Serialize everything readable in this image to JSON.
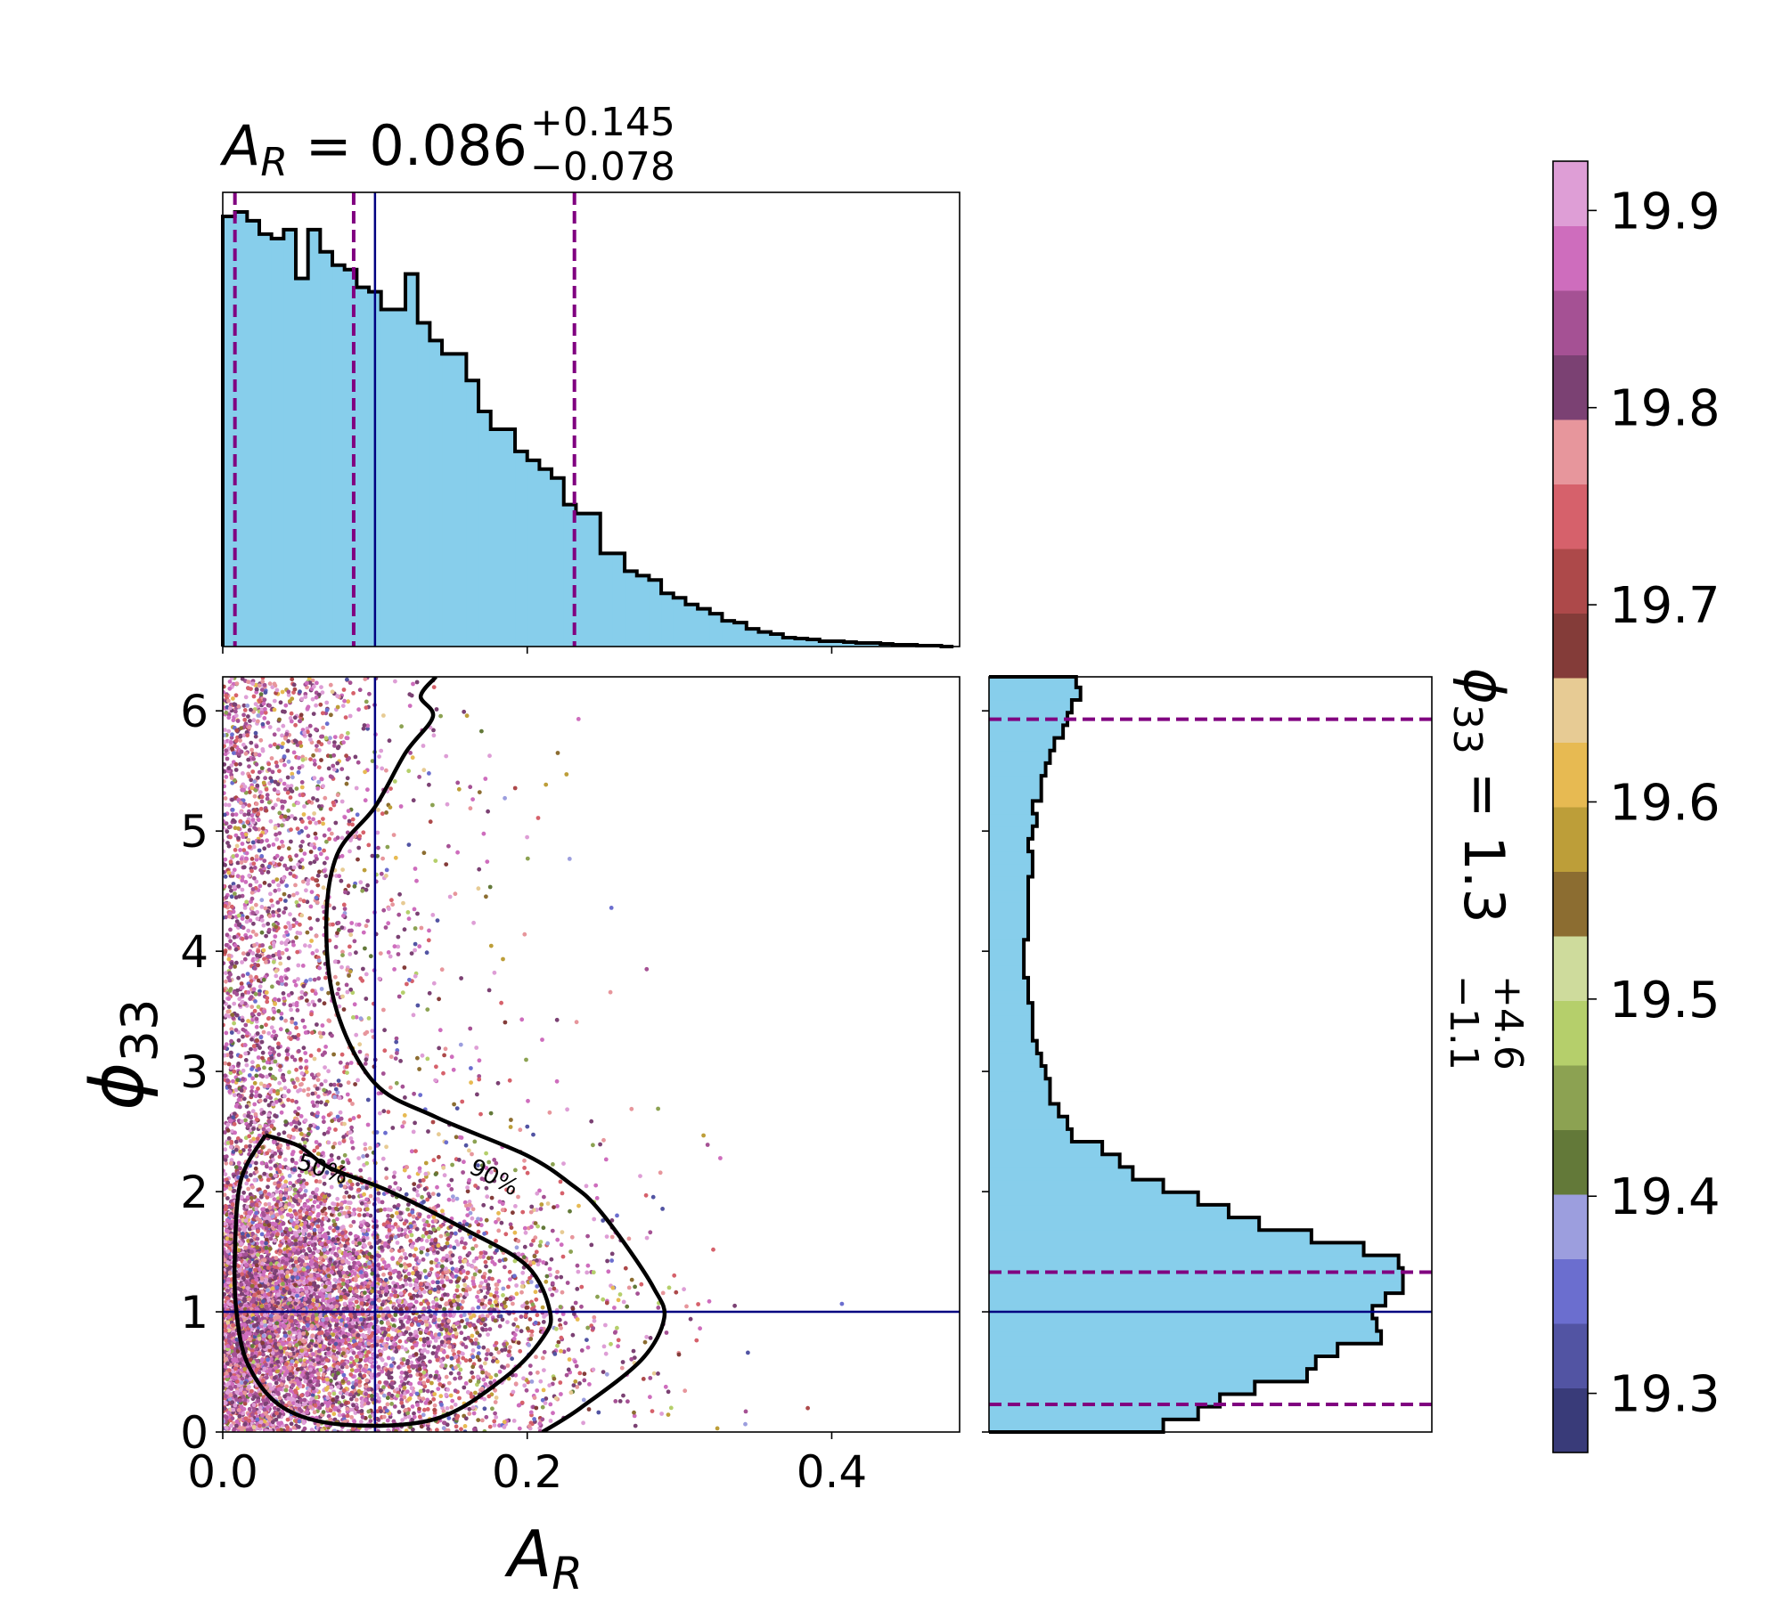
{
  "chart_data": [
    {
      "panel": "top-marginal-histogram",
      "type": "bar",
      "title": {
        "symbol": "A",
        "subscript": "R",
        "eq": " = 0.086",
        "sup": "+0.145",
        "sub": "−0.078"
      },
      "xlim": [
        0,
        0.484
      ],
      "x_ticks": [
        0.0,
        0.2,
        0.4
      ],
      "bins": {
        "start": 0.0,
        "width": 0.008,
        "heights": [
          0.97,
          0.98,
          0.96,
          0.93,
          0.92,
          0.94,
          0.83,
          0.94,
          0.89,
          0.86,
          0.85,
          0.81,
          0.8,
          0.76,
          0.76,
          0.84,
          0.73,
          0.69,
          0.66,
          0.66,
          0.6,
          0.53,
          0.49,
          0.49,
          0.44,
          0.42,
          0.4,
          0.38,
          0.32,
          0.3,
          0.3,
          0.21,
          0.21,
          0.17,
          0.16,
          0.15,
          0.12,
          0.11,
          0.095,
          0.085,
          0.074,
          0.058,
          0.054,
          0.04,
          0.033,
          0.028,
          0.02,
          0.018,
          0.016,
          0.012,
          0.012,
          0.01,
          0.008,
          0.008,
          0.006,
          0.004,
          0.004,
          0.002,
          0.002,
          0.0
        ]
      },
      "fill_color": "#87ceeb",
      "median_line": 0.1,
      "quantile_lines": [
        0.008,
        0.086,
        0.231
      ],
      "median_color": "#000080",
      "quantile_color": "#800080"
    },
    {
      "panel": "joint-scatter",
      "type": "scatter",
      "xlabel": {
        "symbol": "A",
        "subscript": "R"
      },
      "ylabel": {
        "symbol": "ϕ",
        "subscript": "33"
      },
      "xlim": [
        0,
        0.484
      ],
      "ylim": [
        0,
        6.283
      ],
      "x_ticks": [
        "0.0",
        "0.2",
        "0.4"
      ],
      "y_ticks": [
        "0",
        "1",
        "2",
        "3",
        "4",
        "5",
        "6"
      ],
      "truth": {
        "x": 0.1,
        "y": 1.0
      },
      "contours": [
        {
          "label": "50%",
          "points": [
            [
              0.028,
              2.47
            ],
            [
              0.012,
              2.1
            ],
            [
              0.008,
              1.5
            ],
            [
              0.009,
              1.0
            ],
            [
              0.017,
              0.55
            ],
            [
              0.04,
              0.2
            ],
            [
              0.08,
              0.06
            ],
            [
              0.14,
              0.11
            ],
            [
              0.185,
              0.45
            ],
            [
              0.21,
              0.78
            ],
            [
              0.215,
              1.0
            ],
            [
              0.2,
              1.38
            ],
            [
              0.16,
              1.68
            ],
            [
              0.11,
              2.0
            ],
            [
              0.07,
              2.2
            ],
            [
              0.05,
              2.38
            ],
            [
              0.028,
              2.47
            ]
          ]
        },
        {
          "label": "90%",
          "points": [
            [
              0.14,
              6.283
            ],
            [
              0.13,
              6.12
            ],
            [
              0.138,
              5.95
            ],
            [
              0.12,
              5.65
            ],
            [
              0.1,
              5.2
            ],
            [
              0.075,
              4.8
            ],
            [
              0.068,
              4.2
            ],
            [
              0.075,
              3.5
            ],
            [
              0.1,
              2.9
            ],
            [
              0.14,
              2.62
            ],
            [
              0.2,
              2.3
            ],
            [
              0.23,
              2.05
            ],
            [
              0.245,
              1.88
            ],
            [
              0.265,
              1.55
            ],
            [
              0.283,
              1.2
            ],
            [
              0.29,
              0.95
            ],
            [
              0.275,
              0.6
            ],
            [
              0.235,
              0.2
            ],
            [
              0.21,
              0.0
            ]
          ]
        }
      ],
      "contour_labels": [
        "50%",
        "90%"
      ],
      "points_note": "dense colored samples concentrated near A_R < 0.25 and phi_33 around 1"
    },
    {
      "panel": "right-marginal-histogram",
      "type": "bar",
      "orientation": "horizontal",
      "bins": {
        "start": 0.0,
        "width": 0.105,
        "heights": [
          0.4,
          0.48,
          0.53,
          0.61,
          0.73,
          0.75,
          0.8,
          0.9,
          0.89,
          0.88,
          0.91,
          0.95,
          0.95,
          0.94,
          0.86,
          0.74,
          0.62,
          0.55,
          0.48,
          0.4,
          0.33,
          0.3,
          0.26,
          0.19,
          0.18,
          0.16,
          0.14,
          0.14,
          0.13,
          0.12,
          0.11,
          0.1,
          0.1,
          0.1,
          0.09,
          0.09,
          0.08,
          0.08,
          0.08,
          0.09,
          0.09,
          0.09,
          0.09,
          0.09,
          0.1,
          0.1,
          0.09,
          0.1,
          0.11,
          0.1,
          0.12,
          0.12,
          0.13,
          0.14,
          0.15,
          0.17,
          0.18,
          0.19,
          0.21,
          0.2
        ]
      },
      "title_text": {
        "symbol": "ϕ",
        "subscript": "33",
        "eq": " = 1.3",
        "sup": "+4.6",
        "sub": "−1.1"
      },
      "median_line": 1.0,
      "quantile_lines": [
        0.23,
        1.33,
        5.93
      ]
    },
    {
      "panel": "colorbar",
      "type": "heatmap",
      "range": [
        19.27,
        19.925
      ],
      "tick_labels": [
        "19.3",
        "19.4",
        "19.5",
        "19.6",
        "19.7",
        "19.8",
        "19.9"
      ],
      "colors": [
        "#393b79",
        "#5254a3",
        "#6b6ecf",
        "#9c9ede",
        "#637939",
        "#8ca252",
        "#b5cf6b",
        "#cedb9c",
        "#8c6d31",
        "#bd9e39",
        "#e7ba52",
        "#e7cb94",
        "#843c39",
        "#ad494a",
        "#d6616b",
        "#e7969c",
        "#7b4173",
        "#a55194",
        "#ce6dbd",
        "#de9ed6"
      ]
    }
  ]
}
